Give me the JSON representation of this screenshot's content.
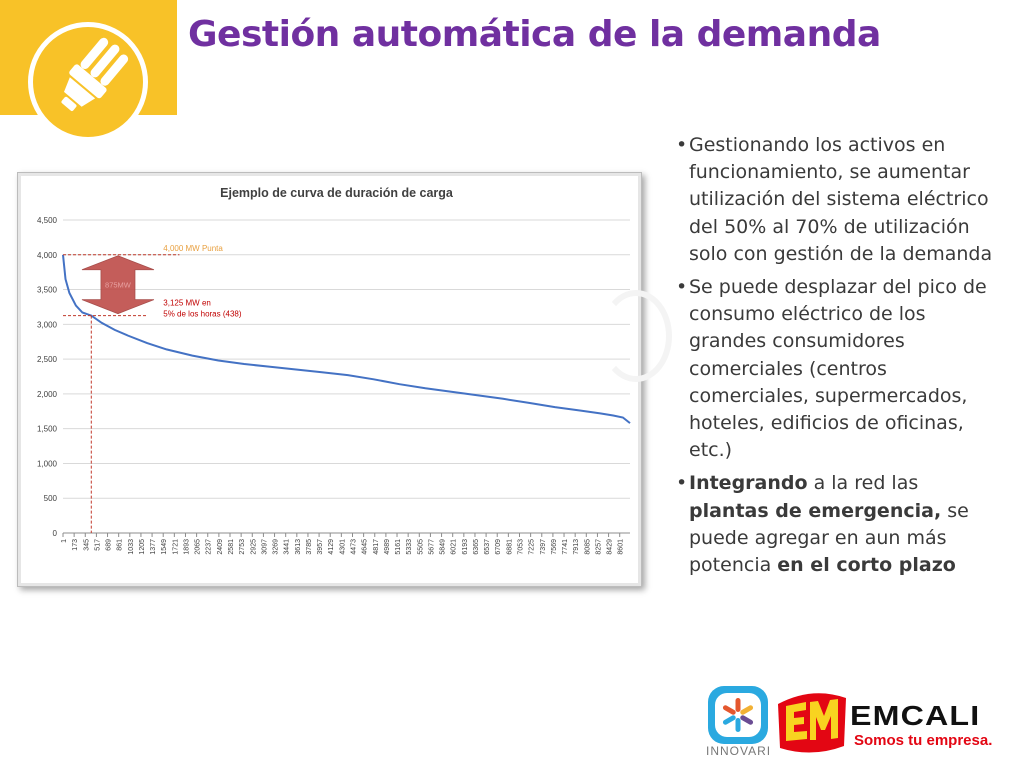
{
  "slide": {
    "title": "Gestión automática de la demanda"
  },
  "icons": {
    "header": "light-bulb-icon"
  },
  "colors": {
    "accent_yellow": "#f8c228",
    "title_purple": "#7030a0",
    "series_blue": "#4472c4",
    "annotation_red": "#c0392b",
    "annotation_orange": "#e8a040"
  },
  "bullets": [
    {
      "segments": [
        {
          "text": "Gestionando los  activos en funcionamiento, se aumentar utilización del sistema eléctrico del 50% al 70% de utilización solo con gestión de la demanda",
          "bold": false
        }
      ]
    },
    {
      "segments": [
        {
          "text": "Se puede desplazar del pico de consumo eléctrico de los grandes consumidores comerciales (centros comerciales, supermercados, hoteles, edificios de oficinas, etc.)",
          "bold": false
        }
      ]
    },
    {
      "segments": [
        {
          "text": "Integrando",
          "bold": true
        },
        {
          "text": " a la red las ",
          "bold": false
        },
        {
          "text": "plantas de emergencia,",
          "bold": true
        },
        {
          "text": " se puede agregar en  aun más potencia ",
          "bold": false
        },
        {
          "text": "en el corto plazo",
          "bold": true
        }
      ]
    }
  ],
  "chart_data": {
    "type": "line",
    "title": "Ejemplo de curva de duración de carga",
    "xlabel": "",
    "ylabel": "",
    "ylim": [
      0,
      4500
    ],
    "yticks": [
      0,
      500,
      1000,
      1500,
      2000,
      2500,
      3000,
      3500,
      4000,
      4500
    ],
    "ytick_labels": [
      "0",
      "500",
      "1,000",
      "1,500",
      "2,000",
      "2,500",
      "3,000",
      "3,500",
      "4,000",
      "4,500"
    ],
    "xlim": [
      1,
      8760
    ],
    "xticks": [
      "1",
      "173",
      "345",
      "517",
      "689",
      "861",
      "1033",
      "1205",
      "1377",
      "1549",
      "1721",
      "1893",
      "2065",
      "2237",
      "2409",
      "2581",
      "2753",
      "2925",
      "3097",
      "3269",
      "3441",
      "3613",
      "3785",
      "3957",
      "4129",
      "4301",
      "4473",
      "4645",
      "4817",
      "4989",
      "5161",
      "5333",
      "5505",
      "5677",
      "5849",
      "6021",
      "6193",
      "6365",
      "6537",
      "6709",
      "6881",
      "7053",
      "7225",
      "7397",
      "7569",
      "7741",
      "7913",
      "8085",
      "8257",
      "8429",
      "8601"
    ],
    "grid": true,
    "legend": "none",
    "series": [
      {
        "x": [
          1,
          40,
          100,
          200,
          300,
          438,
          600,
          800,
          1000,
          1300,
          1600,
          2000,
          2400,
          2800,
          3200,
          3600,
          4000,
          4400,
          4800,
          5200,
          5600,
          6000,
          6400,
          6800,
          7200,
          7600,
          8000,
          8300,
          8500,
          8650,
          8760
        ],
        "y": [
          4000,
          3650,
          3450,
          3270,
          3170,
          3125,
          3020,
          2920,
          2840,
          2730,
          2640,
          2550,
          2480,
          2430,
          2390,
          2350,
          2310,
          2270,
          2210,
          2140,
          2080,
          2030,
          1980,
          1930,
          1870,
          1810,
          1760,
          1720,
          1690,
          1660,
          1580
        ]
      }
    ],
    "annotations": {
      "peak_label": "4,000 MW Punta",
      "peak_value": 4000,
      "diff_label": "875MW",
      "p5_label_line1": "3,125 MW en",
      "p5_label_line2": "5% de los horas (438)",
      "p5_value": 3125,
      "p5_hour": 438
    }
  },
  "logos": {
    "innovari": "INNOVARI",
    "emcali": "EMCALI",
    "emcali_tagline": "Somos tu empresa."
  }
}
